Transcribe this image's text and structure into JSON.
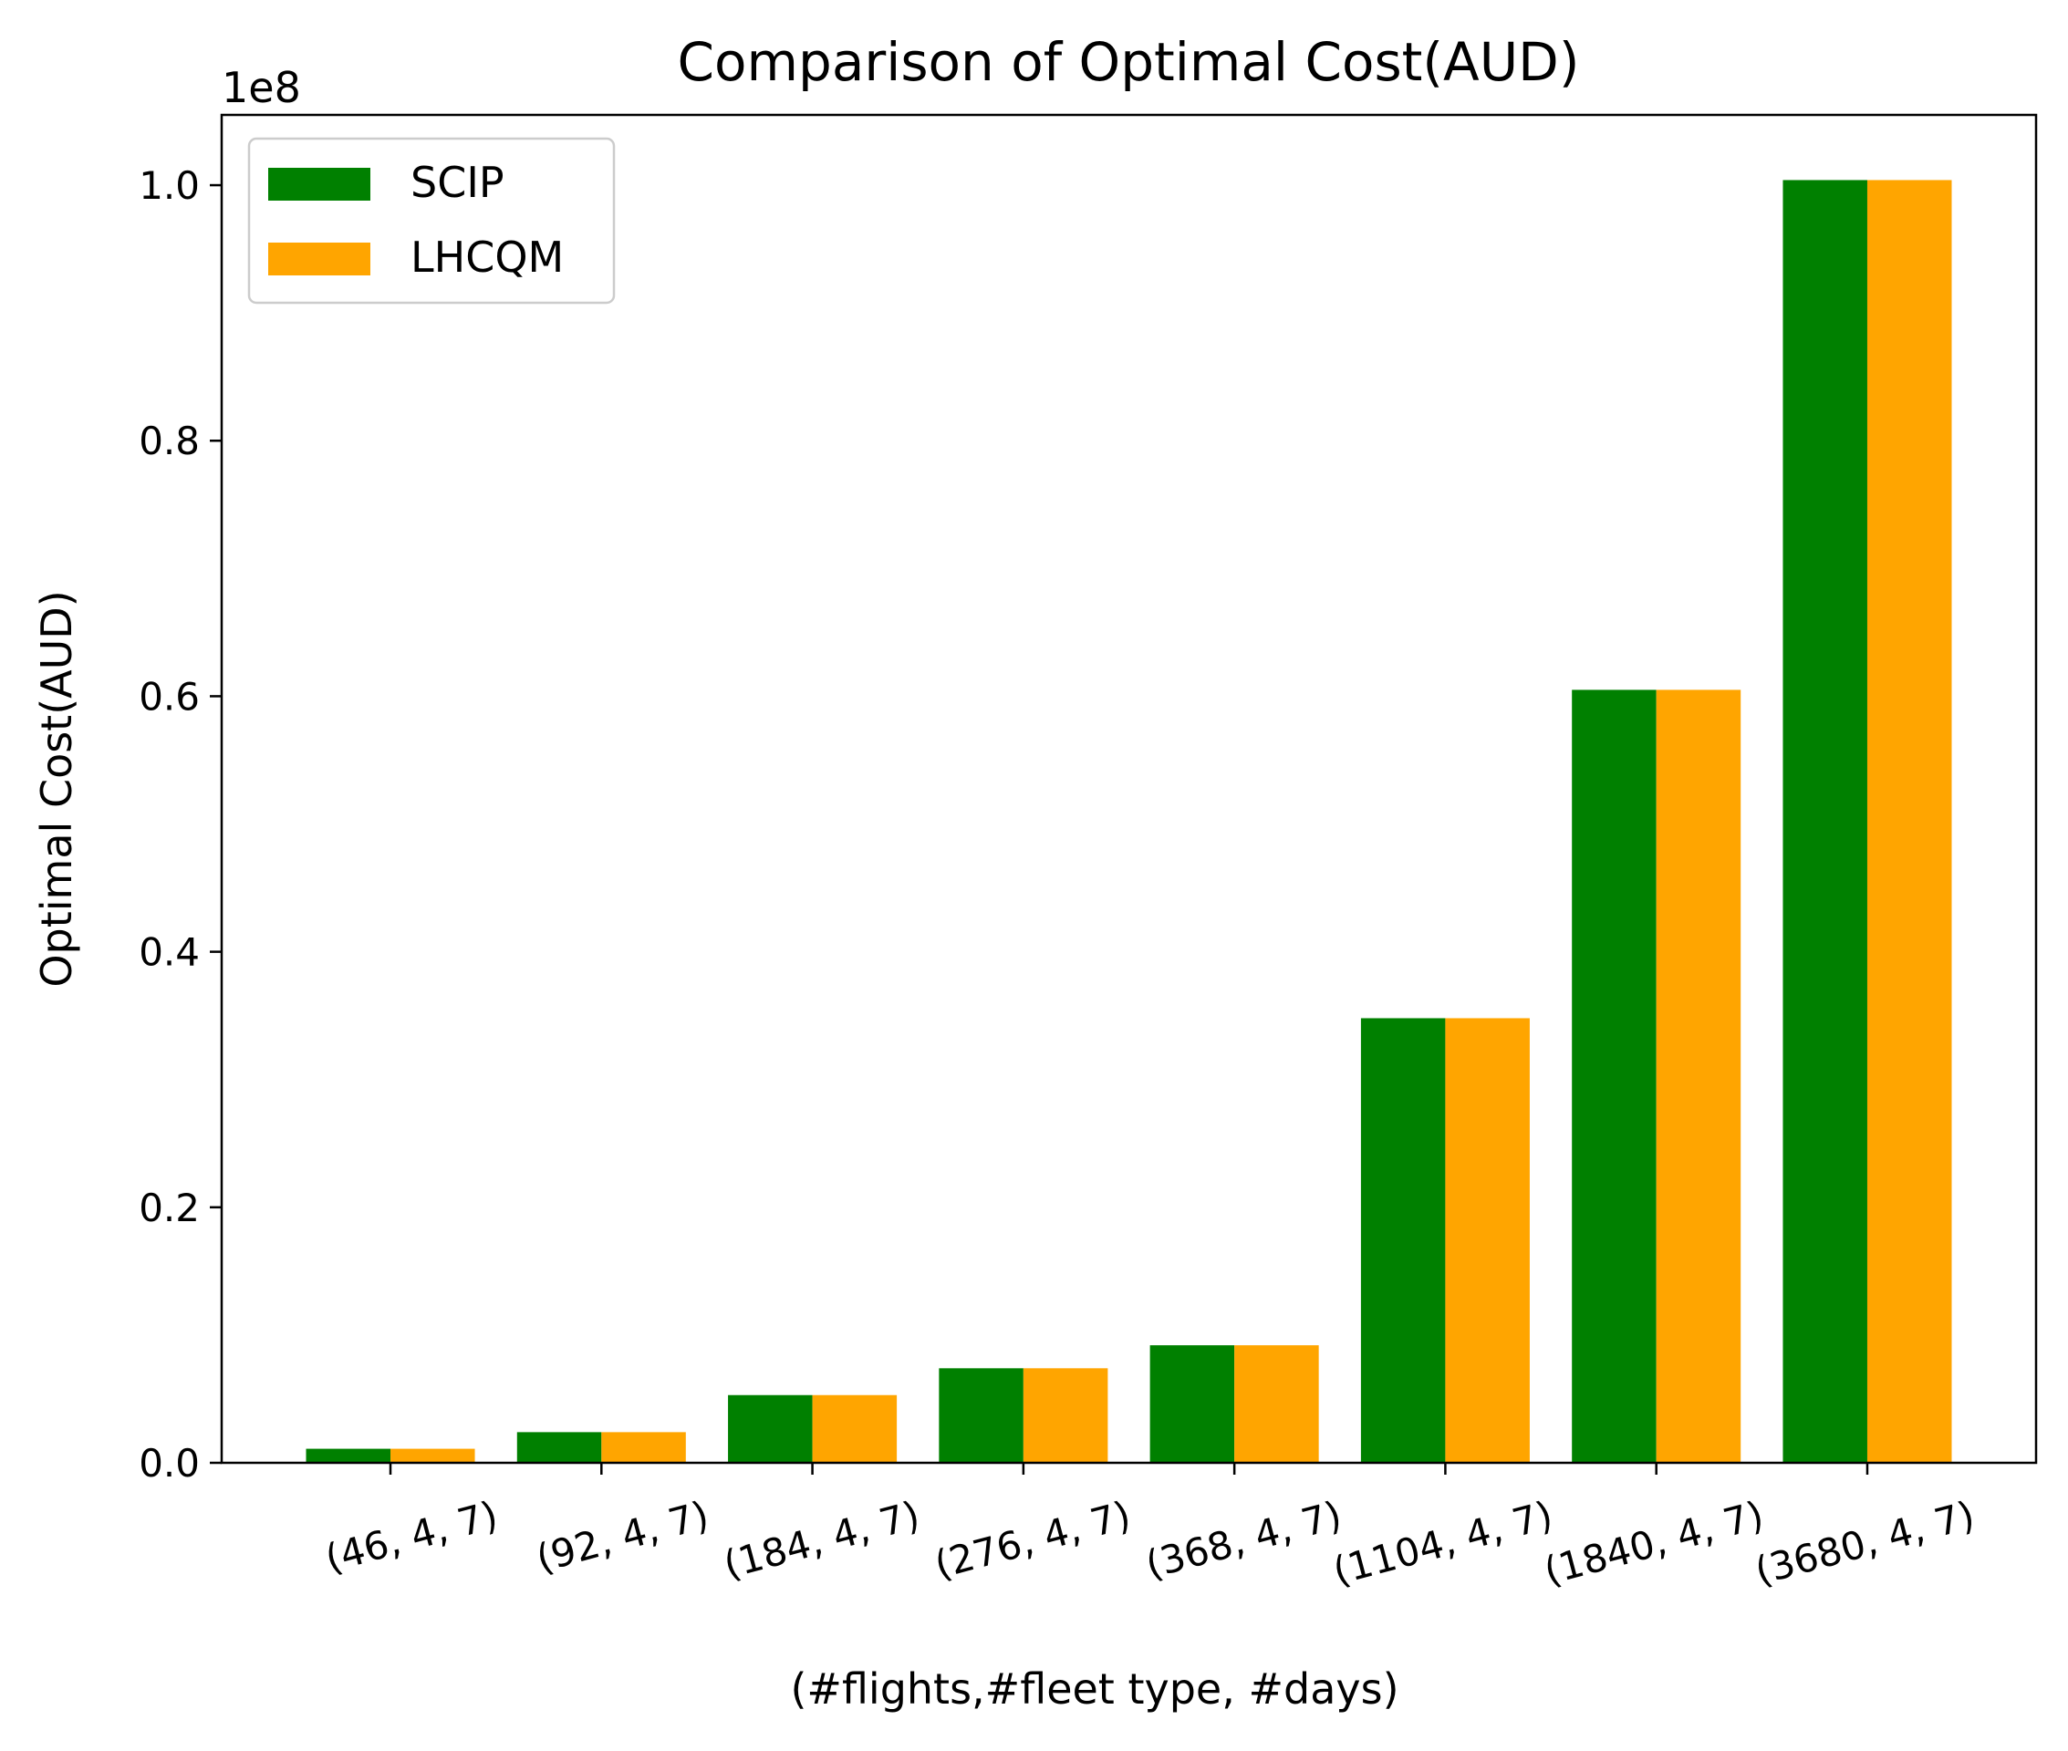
{
  "chart_data": {
    "type": "bar",
    "title": "Comparison of Optimal Cost(AUD)",
    "xlabel": "(#flights,#fleet type, #days)",
    "ylabel": "Optimal Cost(AUD)",
    "y_offset_label": "1e8",
    "ylim": [
      0,
      1.055
    ],
    "yticks": [
      0.0,
      0.2,
      0.4,
      0.6,
      0.8,
      1.0
    ],
    "ytick_labels": [
      "0.0",
      "0.2",
      "0.4",
      "0.6",
      "0.8",
      "1.0"
    ],
    "categories": [
      "(46, 4, 7)",
      "(92, 4, 7)",
      "(184, 4, 7)",
      "(276, 4, 7)",
      "(368, 4, 7)",
      "(1104, 4, 7)",
      "(1840, 4, 7)",
      "(3680, 4, 7)"
    ],
    "series": [
      {
        "name": "SCIP",
        "color": "#008000",
        "values": [
          0.011,
          0.024,
          0.053,
          0.074,
          0.092,
          0.348,
          0.605,
          1.004
        ]
      },
      {
        "name": "LHCQM",
        "color": "#FFA500",
        "values": [
          0.011,
          0.024,
          0.053,
          0.074,
          0.092,
          0.348,
          0.605,
          1.004
        ]
      }
    ],
    "legend_position": "top-left",
    "grid": false
  }
}
